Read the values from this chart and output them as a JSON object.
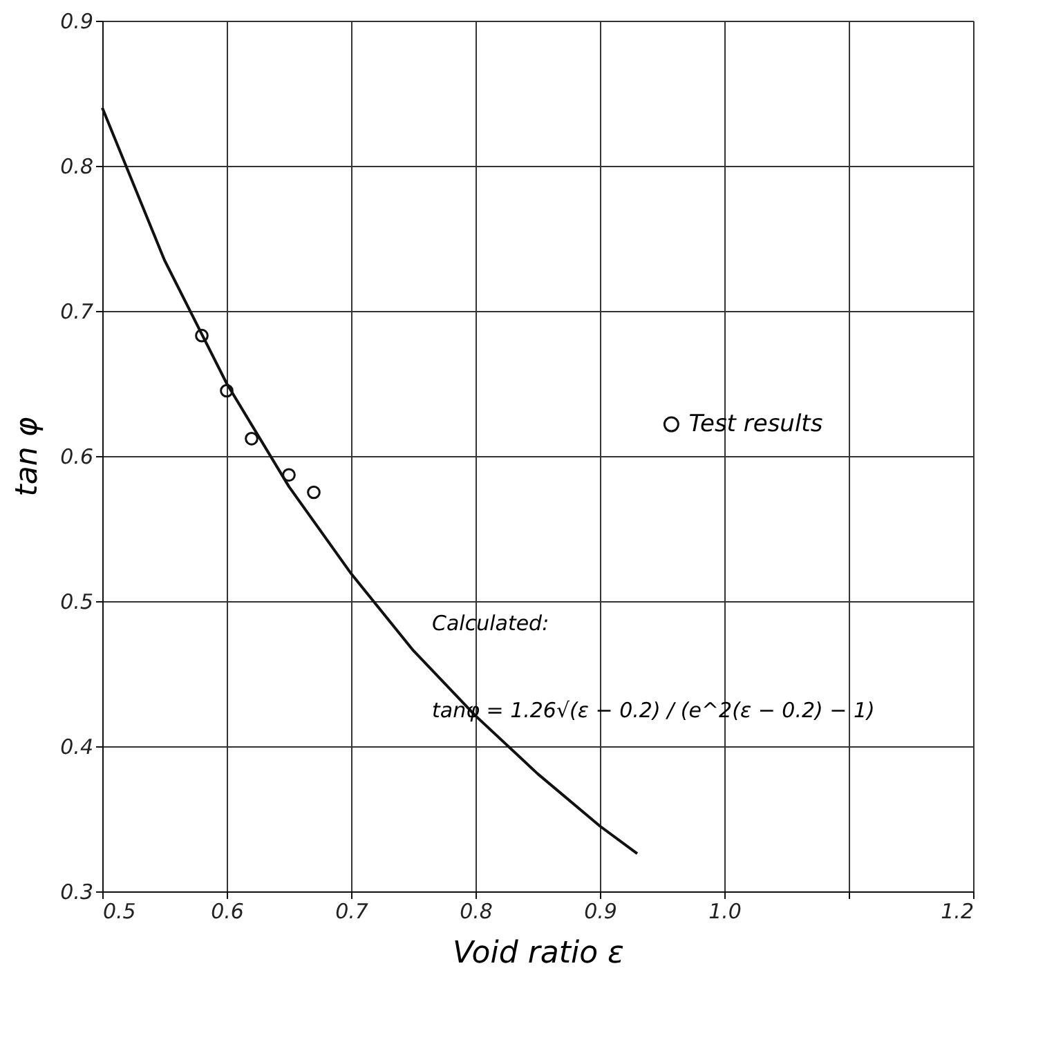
{
  "chart_data": {
    "type": "line",
    "xlabel": "Void ratio ε",
    "ylabel": "tan φ",
    "xlim": [
      0.5,
      1.2
    ],
    "ylim": [
      0.3,
      0.9
    ],
    "xticks": [
      0.5,
      0.6,
      0.7,
      0.8,
      0.9,
      {
        "value": 1.0,
        "label": "1.0"
      },
      {
        "value": 1.1,
        "label": null
      },
      1.2
    ],
    "yticks": [
      0.3,
      0.4,
      0.5,
      0.6,
      0.7,
      0.8,
      0.9
    ],
    "grid": true,
    "legend": "right",
    "series": [
      {
        "color": "#111111",
        "x": [
          0.5,
          0.55,
          0.6,
          0.65,
          0.7,
          0.75,
          0.8,
          0.85,
          0.9,
          0.93
        ],
        "values": [
          0.84,
          0.735,
          0.65,
          0.579,
          0.519,
          0.466,
          0.421,
          0.381,
          0.345,
          0.326
        ]
      },
      {
        "type": "scatter",
        "name": "Test results",
        "color": "#111111",
        "marker": "circle",
        "x": [
          0.58,
          0.6,
          0.62,
          0.65,
          0.67
        ],
        "values": [
          0.683,
          0.645,
          0.612,
          0.587,
          0.575
        ]
      }
    ],
    "annotations": [
      "Calculated:",
      "tanφ = 1.26√(ε − 0.2) / (e^2(ε − 0.2) − 1)"
    ]
  }
}
